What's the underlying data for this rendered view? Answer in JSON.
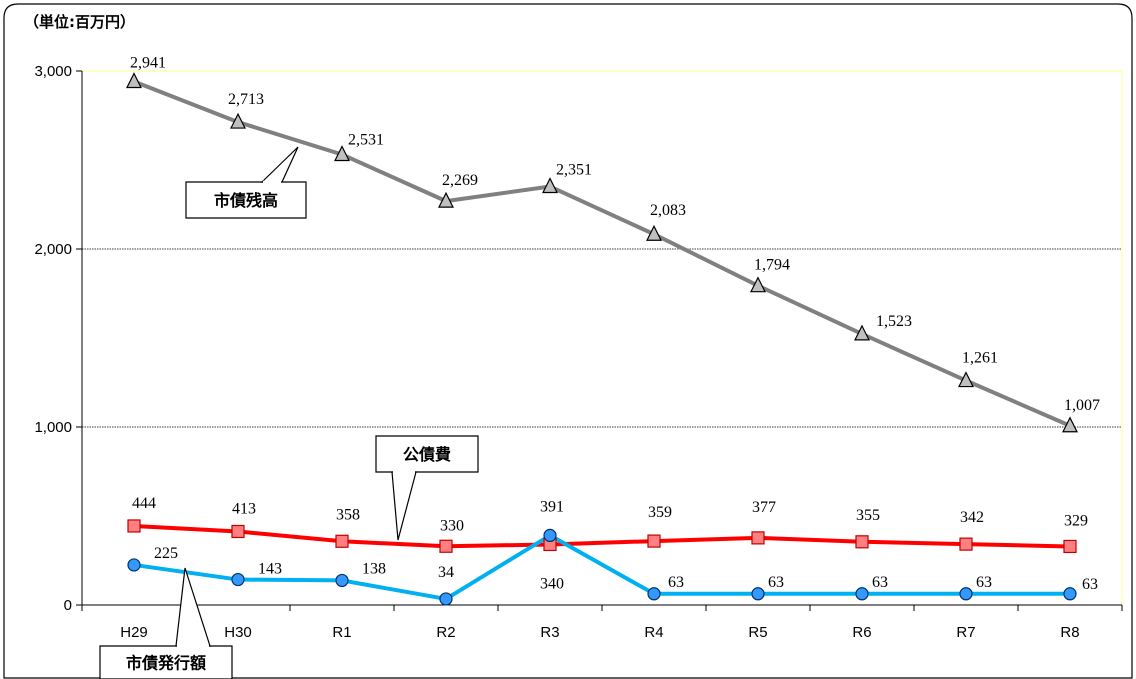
{
  "chart_data": {
    "type": "line",
    "unit_label": "（単位:百万円）",
    "categories": [
      "H29",
      "H30",
      "R1",
      "R2",
      "R3",
      "R4",
      "R5",
      "R6",
      "R7",
      "R8"
    ],
    "ylim": [
      0,
      3000
    ],
    "yticks": [
      "0",
      "1,000",
      "2,000",
      "3,000"
    ],
    "grid": true,
    "series": [
      {
        "name": "市債残高",
        "color": "#808080",
        "marker": "triangle",
        "values": [
          2941,
          2713,
          2531,
          2269,
          2351,
          2083,
          1794,
          1523,
          1261,
          1007
        ],
        "labels": [
          "2,941",
          "2,713",
          "2,531",
          "2,269",
          "2,351",
          "2,083",
          "1,794",
          "1,523",
          "1,261",
          "1,007"
        ]
      },
      {
        "name": "公債費",
        "color": "#ff0000",
        "marker": "square",
        "values": [
          444,
          413,
          358,
          330,
          340,
          359,
          377,
          355,
          342,
          329
        ],
        "labels": [
          "444",
          "413",
          "358",
          "330",
          "340",
          "359",
          "377",
          "355",
          "342",
          "329"
        ]
      },
      {
        "name": "市債発行額",
        "color": "#00b0f0",
        "marker": "circle",
        "values": [
          225,
          143,
          138,
          34,
          391,
          63,
          63,
          63,
          63,
          63
        ],
        "labels": [
          "225",
          "143",
          "138",
          "34",
          "391",
          "63",
          "63",
          "63",
          "63",
          "63"
        ]
      }
    ]
  }
}
